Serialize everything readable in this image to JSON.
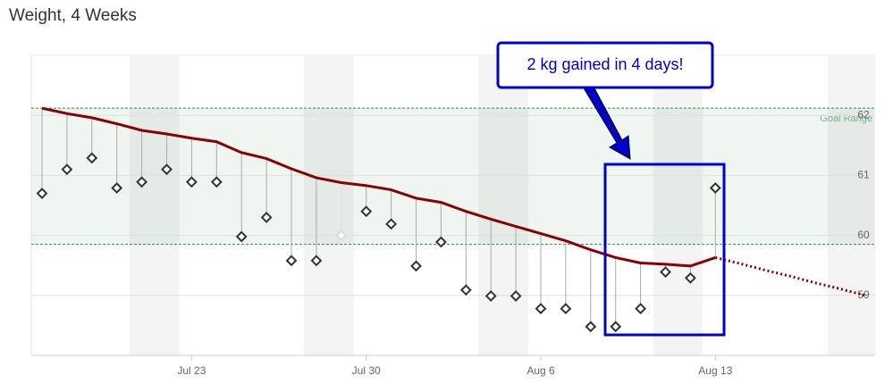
{
  "chart_data": {
    "type": "line",
    "title": "Weight, 4 Weeks",
    "categories": [
      null,
      null,
      null,
      null,
      null,
      null,
      "Jul 23",
      null,
      null,
      null,
      null,
      null,
      null,
      "Jul 30",
      null,
      null,
      null,
      null,
      null,
      null,
      "Aug 6",
      null,
      null,
      null,
      null,
      null,
      null,
      "Aug 13",
      null,
      null,
      null,
      null,
      null,
      null
    ],
    "series": [
      {
        "color": "#8b0000",
        "values": [
          62.12,
          62.03,
          61.96,
          61.86,
          61.75,
          61.69,
          61.62,
          61.56,
          61.38,
          61.28,
          61.11,
          60.96,
          60.88,
          60.83,
          60.76,
          60.62,
          60.55,
          60.4,
          60.27,
          60.15,
          60.03,
          59.91,
          59.76,
          59.63,
          59.54,
          59.52,
          59.49,
          59.63,
          null,
          null,
          null,
          null,
          null,
          null
        ]
      },
      {
        "color": "#8b0000",
        "dash": "dotted",
        "values": [
          null,
          null,
          null,
          null,
          null,
          null,
          null,
          null,
          null,
          null,
          null,
          null,
          null,
          null,
          null,
          null,
          null,
          null,
          null,
          null,
          null,
          null,
          null,
          null,
          null,
          null,
          null,
          59.63,
          59.53,
          59.42,
          59.32,
          59.21,
          59.11,
          59.0
        ]
      },
      {
        "color": "#333333",
        "marker": "diamond",
        "values": [
          60.7,
          61.1,
          61.29,
          60.79,
          60.89,
          61.1,
          60.89,
          60.89,
          59.98,
          60.3,
          59.58,
          59.58,
          60.0,
          60.4,
          60.19,
          59.49,
          59.89,
          59.09,
          58.99,
          58.99,
          58.78,
          58.78,
          58.48,
          58.48,
          58.78,
          59.39,
          59.29,
          60.79,
          null,
          null,
          null,
          null,
          null,
          null
        ]
      }
    ],
    "faded": [
      12
    ],
    "drop_lines": true,
    "ylim": [
      58,
      63
    ],
    "yticks": [
      59,
      60,
      61,
      62
    ],
    "grid": true,
    "goal_range": {
      "label": "Goal Range",
      "values": [
        59.85,
        62.12
      ],
      "color": "#2e8b57"
    },
    "annotation": {
      "text": "2 kg gained in 4 days!",
      "color": "#0000cc"
    }
  }
}
